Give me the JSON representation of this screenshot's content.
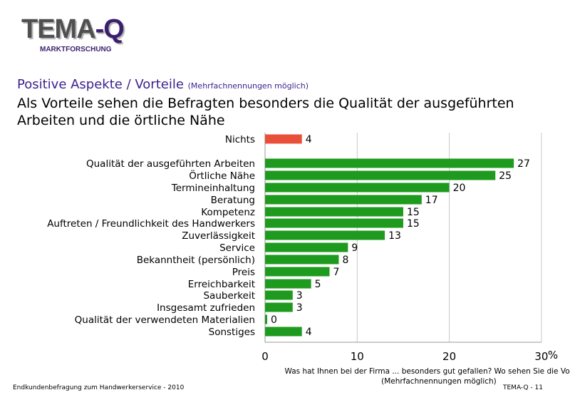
{
  "logo": {
    "main_part1": "TEMA",
    "main_part2": "-Q",
    "sub": "MARKTFORSCHUNG"
  },
  "section": {
    "title": "Positive Aspekte / Vorteile",
    "note": "(Mehrfachnennungen möglich)"
  },
  "headline": "Als Vorteile sehen die Befragten besonders die Qualität der ausgeführten Arbeiten und die örtliche Nähe",
  "footer": {
    "left": "Endkundenbefragung zum Handwerkerservice - 2010",
    "right": "TEMA-Q - 11"
  },
  "chart_data": {
    "type": "bar",
    "orientation": "horizontal",
    "categories": [
      "Nichts",
      "Qualität der ausgeführten Arbeiten",
      "Örtliche Nähe",
      "Termineinhaltung",
      "Beratung",
      "Kompetenz",
      "Auftreten / Freundlichkeit des Handwerkers",
      "Zuverlässigkeit",
      "Service",
      "Bekanntheit (persönlich)",
      "Preis",
      "Erreichbarkeit",
      "Sauberkeit",
      "Insgesamt zufrieden",
      "Qualität der verwendeten Materialien",
      "Sonstiges"
    ],
    "values": [
      4,
      27,
      25,
      20,
      17,
      15,
      15,
      13,
      9,
      8,
      7,
      5,
      3,
      3,
      0,
      4
    ],
    "colors": [
      "#e8503a",
      "#1e9a1e",
      "#1e9a1e",
      "#1e9a1e",
      "#1e9a1e",
      "#1e9a1e",
      "#1e9a1e",
      "#1e9a1e",
      "#1e9a1e",
      "#1e9a1e",
      "#1e9a1e",
      "#1e9a1e",
      "#1e9a1e",
      "#1e9a1e",
      "#1e9a1e",
      "#1e9a1e"
    ],
    "xlim": [
      0,
      30
    ],
    "xticks": [
      "0",
      "10",
      "20",
      "30"
    ],
    "x_unit": "%",
    "xlabel_line1": "Was hat Ihnen bei der Firma ... besonders gut gefallen? Wo sehen Sie die Vorteile?",
    "xlabel_line2": "(Mehrfachnennungen möglich)",
    "grid": true
  }
}
